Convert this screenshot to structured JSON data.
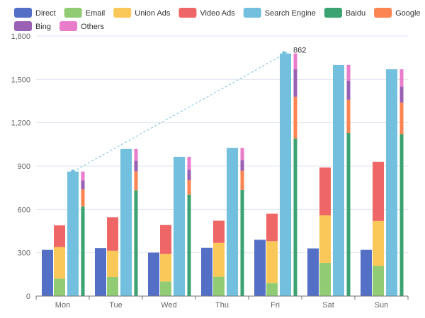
{
  "chart_data": {
    "type": "bar",
    "categories": [
      "Mon",
      "Tue",
      "Wed",
      "Thu",
      "Fri",
      "Sat",
      "Sun"
    ],
    "ylim": [
      0,
      1800
    ],
    "yticks": [
      0,
      300,
      600,
      900,
      1200,
      1500,
      1800
    ],
    "ytick_labels": [
      "0",
      "300",
      "600",
      "900",
      "1,200",
      "1,500",
      "1,800"
    ],
    "grid": true,
    "legend_position": "top",
    "series": [
      {
        "name": "Direct",
        "stack": "direct",
        "color": "#5470c6",
        "values": [
          320,
          332,
          301,
          334,
          390,
          330,
          320
        ]
      },
      {
        "name": "Email",
        "stack": "ad",
        "color": "#91cc75",
        "values": [
          120,
          132,
          101,
          134,
          90,
          230,
          210
        ]
      },
      {
        "name": "Union Ads",
        "stack": "ad",
        "color": "#fac858",
        "values": [
          220,
          182,
          191,
          234,
          290,
          330,
          310
        ]
      },
      {
        "name": "Video Ads",
        "stack": "ad",
        "color": "#ee6666",
        "values": [
          150,
          232,
          201,
          154,
          190,
          330,
          410
        ]
      },
      {
        "name": "Search Engine",
        "stack": "search",
        "color": "#73c0de",
        "values": [
          862,
          1018,
          964,
          1026,
          1679,
          1600,
          1570
        ]
      },
      {
        "name": "Baidu",
        "stack": "engine",
        "color": "#3ba272",
        "values": [
          620,
          732,
          701,
          734,
          1090,
          1130,
          1120
        ]
      },
      {
        "name": "Google",
        "stack": "engine",
        "color": "#fc8452",
        "values": [
          120,
          132,
          101,
          134,
          290,
          230,
          220
        ]
      },
      {
        "name": "Bing",
        "stack": "engine",
        "color": "#9a60b4",
        "values": [
          60,
          72,
          71,
          74,
          190,
          130,
          110
        ]
      },
      {
        "name": "Others",
        "stack": "engine",
        "color": "#ea7ccc",
        "values": [
          62,
          82,
          91,
          84,
          109,
          110,
          120
        ]
      }
    ],
    "annotation": {
      "label": "862",
      "from": {
        "category": "Mon",
        "value": 862
      },
      "to": {
        "category": "Fri",
        "value": 1679
      }
    }
  }
}
